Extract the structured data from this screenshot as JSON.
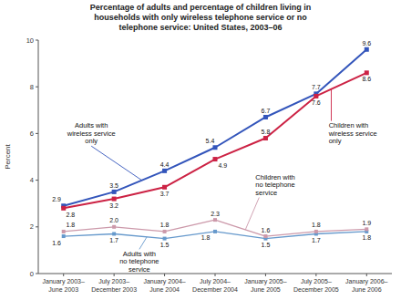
{
  "chart_data": {
    "type": "line",
    "title": "Percentage of adults and percentage of children living in\nhouseholds with only wireless telephone service or no\ntelephone service: United States, 2003–06",
    "ylabel": "Percent",
    "categories": [
      "January 2003–\nJune 2003",
      "July 2003–\nDecember 2003",
      "January 2004–\nJune 2004",
      "July 2004–\nDecember 2004",
      "January 2005–\nJune 2005",
      "July 2005–\nDecember 2005",
      "January 2006–\nJune 2006"
    ],
    "series": [
      {
        "name": "Adults with\nwireless service\nonly",
        "color": "#3355bb",
        "marker": "square",
        "values": [
          2.9,
          3.5,
          4.4,
          5.4,
          6.7,
          7.7,
          9.6
        ],
        "value_labels": [
          "2.9",
          "3.5",
          "4.4",
          "5.4",
          "6.7",
          "7.7",
          "9.6"
        ]
      },
      {
        "name": "Children with\nwireless service\nonly",
        "color": "#cc2244",
        "marker": "square",
        "values": [
          2.8,
          3.2,
          3.7,
          4.9,
          5.8,
          7.6,
          8.6
        ],
        "value_labels": [
          "2.8",
          "3.2",
          "3.7",
          "4.9",
          "5.8",
          "7.6",
          "8.6"
        ]
      },
      {
        "name": "Adults with\nno telephone\nservice",
        "color": "#6699cc",
        "marker": "square",
        "values": [
          1.6,
          1.7,
          1.5,
          1.8,
          1.5,
          1.7,
          1.8
        ],
        "value_labels": [
          "1.6",
          "1.7",
          "1.5",
          "1.8",
          "1.5",
          "1.7",
          "1.8"
        ]
      },
      {
        "name": "Children with\nno telephone\nservice",
        "color": "#cc99aa",
        "marker": "square",
        "values": [
          1.8,
          2.0,
          1.8,
          2.3,
          1.6,
          1.8,
          1.9
        ],
        "value_labels": [
          "1.8",
          "2.0",
          "1.8",
          "2.3",
          "1.6",
          "1.8",
          "1.9"
        ]
      }
    ],
    "ylim": [
      0,
      10
    ],
    "yticks": [
      0,
      2,
      4,
      6,
      8,
      10
    ],
    "grid": false,
    "data_labels": true
  }
}
